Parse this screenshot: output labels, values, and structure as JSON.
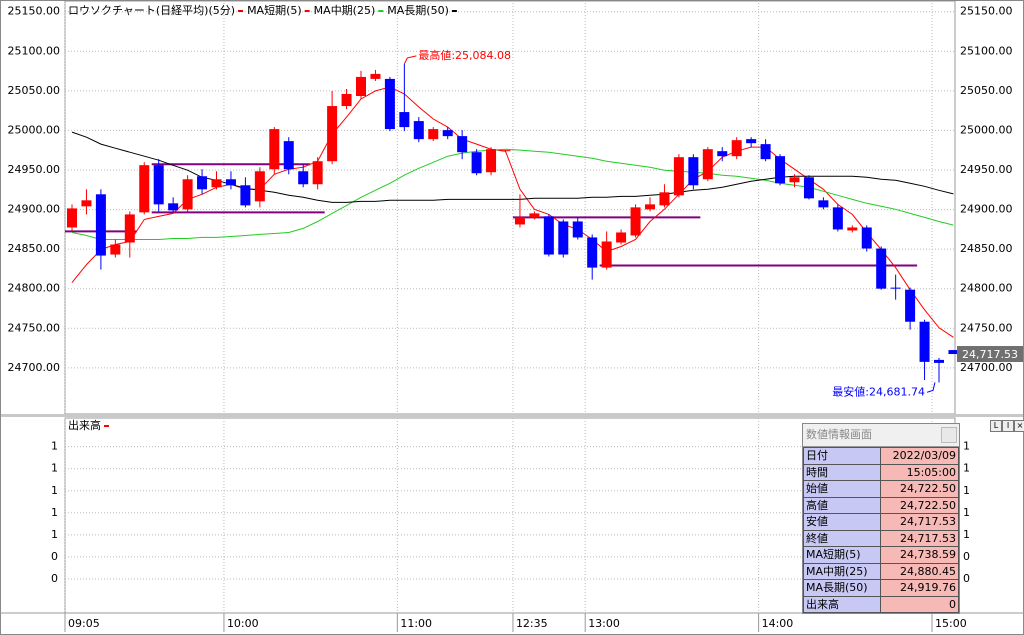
{
  "chart_data": {
    "type": "candlestick",
    "title": "ロウソクチャート(日経平均)(5分)",
    "title_color": "#e00000",
    "categories": [
      "09:05",
      null,
      null,
      null,
      null,
      null,
      null,
      null,
      null,
      null,
      null,
      "10:00",
      null,
      null,
      null,
      null,
      null,
      null,
      null,
      null,
      null,
      null,
      null,
      "11:00",
      null,
      null,
      null,
      null,
      null,
      null,
      null,
      "12:35",
      null,
      null,
      null,
      null,
      "13:00",
      null,
      null,
      null,
      null,
      null,
      null,
      null,
      null,
      null,
      null,
      null,
      "14:00",
      null,
      null,
      null,
      null,
      null,
      null,
      null,
      null,
      null,
      null,
      null,
      "15:00",
      null
    ],
    "ohlc": [
      [
        24877.4,
        24906.6,
        24872.4,
        24901.5
      ],
      [
        24904.1,
        24925.6,
        24893.9,
        24911.7
      ],
      [
        24919.3,
        24925.6,
        24824.2,
        24841.9
      ],
      [
        24843.2,
        24862.2,
        24839.4,
        24855.9
      ],
      [
        24858.4,
        24897.7,
        24839.4,
        24893.9
      ],
      [
        24896.5,
        24959.9,
        24893.9,
        24956.1
      ],
      [
        24956.1,
        24963.7,
        24897.7,
        24906.6
      ],
      [
        24907.9,
        24915.5,
        24896.5,
        24899.0
      ],
      [
        24900.3,
        24943.4,
        24896.5,
        24938.3
      ],
      [
        24942.1,
        24951.0,
        24919.3,
        24925.6
      ],
      [
        24928.2,
        24948.4,
        24925.6,
        24938.3
      ],
      [
        24938.3,
        24948.4,
        24925.6,
        24930.7
      ],
      [
        24930.7,
        24940.8,
        24902.8,
        24905.3
      ],
      [
        24910.4,
        24953.5,
        24902.8,
        24948.4
      ],
      [
        24951.0,
        25004.2,
        24944.6,
        25001.7
      ],
      [
        24986.5,
        24991.5,
        24944.6,
        24951.0
      ],
      [
        24948.4,
        24957.3,
        24928.2,
        24932.0
      ],
      [
        24932.0,
        24966.2,
        24925.6,
        24961.1
      ],
      [
        24961.1,
        25049.9,
        24957.3,
        25030.8
      ],
      [
        25030.8,
        25052.4,
        25027.0,
        25046.1
      ],
      [
        25043.5,
        25075.2,
        25039.7,
        25067.6
      ],
      [
        25065.1,
        25076.5,
        25062.5,
        25071.4
      ],
      [
        25065.1,
        25067.6,
        24999.2,
        25001.7
      ],
      [
        25023.2,
        25084.08,
        24999.2,
        25004.2
      ],
      [
        25011.8,
        25016.9,
        24985.2,
        24989.0
      ],
      [
        24989.0,
        25004.2,
        24986.5,
        25001.7
      ],
      [
        25000.4,
        25004.2,
        24989.0,
        24992.8
      ],
      [
        24992.8,
        25000.4,
        24963.7,
        24972.5
      ],
      [
        24972.5,
        24976.3,
        24943.4,
        24945.9
      ],
      [
        24947.2,
        24978.9,
        24943.4,
        24976.3
      ],
      [
        24973.8,
        24975.1,
        24972.5,
        24975.1
      ],
      [
        24881.2,
        24919.3,
        24877.4,
        24890.1
      ],
      [
        24890.1,
        24897.7,
        24887.6,
        24895.2
      ],
      [
        24891.4,
        24893.9,
        24840.7,
        24843.2
      ],
      [
        24885.0,
        24887.6,
        24839.4,
        24843.2
      ],
      [
        24885.0,
        24890.1,
        24862.2,
        24864.8
      ],
      [
        24864.8,
        24868.6,
        24811.5,
        24826.7
      ],
      [
        24826.7,
        24872.4,
        24824.2,
        24859.7
      ],
      [
        24858.4,
        24874.9,
        24855.9,
        24871.1
      ],
      [
        24867.3,
        24906.6,
        24864.8,
        24902.8
      ],
      [
        24900.3,
        24915.5,
        24897.7,
        24906.6
      ],
      [
        24905.3,
        24932.0,
        24902.8,
        24921.8
      ],
      [
        24918.0,
        24970.0,
        24915.5,
        24966.2
      ],
      [
        24966.2,
        24970.0,
        24925.6,
        24930.7
      ],
      [
        24938.3,
        24978.9,
        24935.8,
        24976.3
      ],
      [
        24973.8,
        24978.9,
        24961.1,
        24967.5
      ],
      [
        24967.5,
        24991.5,
        24963.7,
        24987.7
      ],
      [
        24989.0,
        24991.5,
        24978.9,
        24983.9
      ],
      [
        24982.7,
        24989.0,
        24961.1,
        24963.7
      ],
      [
        24967.5,
        24970.0,
        24930.7,
        24933.2
      ],
      [
        24934.5,
        24944.6,
        24928.2,
        24940.8
      ],
      [
        24940.8,
        24943.4,
        24912.9,
        24914.2
      ],
      [
        24911.7,
        24915.5,
        24900.3,
        24902.8
      ],
      [
        24902.8,
        24906.6,
        24872.4,
        24874.9
      ],
      [
        24873.6,
        24880.0,
        24871.1,
        24877.4
      ],
      [
        24877.4,
        24880.0,
        24847.0,
        24850.8
      ],
      [
        24850.8,
        24853.4,
        24798.8,
        24800.1
      ],
      [
        24801.4,
        24817.9,
        24786.2,
        24800.1
      ],
      [
        24798.8,
        24801.4,
        24748.2,
        24758.3
      ],
      [
        24758.3,
        24760.8,
        24684.7,
        24707.6
      ],
      [
        24710.1,
        24712.7,
        24681.74,
        24706.3
      ],
      [
        24722.5,
        24722.5,
        24717.53,
        24717.53
      ]
    ],
    "up_color": "#ff0000",
    "down_color": "#0000ff",
    "series": [
      {
        "name": "MA短期(5)",
        "color": "#ff0000",
        "values": [
          24807.7,
          24830.5,
          24849.5,
          24855.9,
          24859.7,
          24887.6,
          24891.4,
          24895.2,
          24912.9,
          24919.3,
          24928.2,
          24932.0,
          24925.6,
          24925.6,
          24944.6,
          24951.0,
          24953.5,
          24961.1,
          24995.3,
          25016.9,
          25039.7,
          25049.9,
          25054.9,
          25046.1,
          25029.6,
          25014.4,
          25004.2,
          24989.0,
          24982.7,
          24976.3,
          24973.8,
          24925.6,
          24900.3,
          24893.9,
          24881.2,
          24874.9,
          24862.2,
          24847.0,
          24853.4,
          24862.2,
          24885.0,
          24900.3,
          24919.3,
          24938.3,
          24948.4,
          24966.2,
          24973.8,
          24978.9,
          24978.9,
          24963.7,
          24951.0,
          24938.3,
          24925.6,
          24906.6,
          24893.9,
          24871.1,
          24849.5,
          24826.7,
          24798.8,
          24773.5,
          24750.7,
          24738.59
        ]
      },
      {
        "name": "MA中期(25)",
        "color": "#22cc22",
        "values": [
          24871.1,
          24867.3,
          24862.2,
          24862.2,
          24862.2,
          24862.2,
          24862.2,
          24863.5,
          24863.5,
          24864.8,
          24864.8,
          24866.0,
          24867.3,
          24868.6,
          24869.8,
          24871.1,
          24876.2,
          24885.0,
          24895.2,
          24905.3,
          24915.5,
          24924.4,
          24933.2,
          24943.4,
          24952.2,
          24959.8,
          24967.5,
          24971.3,
          24973.8,
          24975.1,
          24976.3,
          24975.1,
          24973.8,
          24972.5,
          24970.0,
          24967.5,
          24964.9,
          24961.1,
          24958.6,
          24956.0,
          24953.5,
          24949.7,
          24948.4,
          24947.2,
          24945.9,
          24943.4,
          24942.1,
          24939.6,
          24937.0,
          24933.2,
          24930.7,
          24928.2,
          24923.1,
          24918.0,
          24912.9,
          24907.9,
          24904.1,
          24900.3,
          24895.2,
          24890.1,
          24885.0,
          24880.45
        ]
      },
      {
        "name": "MA長期(50)",
        "color": "#000000",
        "values": [
          24997.9,
          24991.5,
          24982.7,
          24977.6,
          24972.5,
          24967.5,
          24962.4,
          24956.0,
          24949.7,
          24940.8,
          24937.0,
          24932.0,
          24926.9,
          24924.4,
          24921.8,
          24918.0,
          24915.5,
          24911.7,
          24909.1,
          24909.1,
          24910.4,
          24910.4,
          24911.7,
          24911.7,
          24911.7,
          24911.7,
          24912.9,
          24912.9,
          24912.9,
          24912.9,
          24912.9,
          24912.9,
          24914.2,
          24914.2,
          24914.2,
          24914.2,
          24915.5,
          24915.5,
          24916.7,
          24916.7,
          24918.0,
          24919.3,
          24921.8,
          24924.4,
          24925.6,
          24928.2,
          24932.0,
          24935.8,
          24938.3,
          24940.8,
          24942.1,
          24942.1,
          24942.1,
          24942.1,
          24942.1,
          24940.8,
          24938.3,
          24937.0,
          24933.2,
          24929.4,
          24924.4,
          24919.76
        ]
      }
    ],
    "ylim": [
      24643,
      25161
    ],
    "yticks": [
      {
        "value": 25150,
        "label": "25150.00"
      },
      {
        "value": 25100,
        "label": "25100.00"
      },
      {
        "value": 25050,
        "label": "25050.00"
      },
      {
        "value": 25000,
        "label": "25000.00"
      },
      {
        "value": 24950,
        "label": "24950.00"
      },
      {
        "value": 24900,
        "label": "24900.00"
      },
      {
        "value": 24850,
        "label": "24850.00"
      },
      {
        "value": 24800,
        "label": "24800.00"
      },
      {
        "value": 24750,
        "label": "24750.00"
      },
      {
        "value": 24700,
        "label": "24700.00"
      }
    ],
    "grid": true,
    "levels": [
      {
        "value": 24957.3,
        "from": 6,
        "to": 16,
        "color": "#800080"
      },
      {
        "value": 24896.5,
        "from": 6,
        "to": 17,
        "color": "#800080"
      },
      {
        "value": 24872.4,
        "from": 0,
        "to": 4,
        "color": "#800080"
      },
      {
        "value": 24890.1,
        "from": 31,
        "to": 43,
        "color": "#800080"
      },
      {
        "value": 24829.3,
        "from": 37,
        "to": 58,
        "color": "#800080"
      }
    ],
    "annotations": [
      {
        "text": "最高値:25,084.08",
        "value": 25084.08,
        "index": 23,
        "color": "#ff0000"
      },
      {
        "text": "最安値:24,681.74",
        "value": 24681.74,
        "index": 60,
        "color": "#0000ff"
      }
    ],
    "last_price": {
      "value": 24717.53,
      "label": "24,717.53"
    }
  },
  "volume_panel": {
    "title": "出来高",
    "title_color": "#ff0000",
    "ylim": [
      0,
      1.66
    ],
    "yticks": [
      {
        "value": 1.4,
        "label": "1"
      },
      {
        "value": 1.2,
        "label": "1"
      },
      {
        "value": 1.0,
        "label": "1"
      },
      {
        "value": 0.8,
        "label": "1"
      },
      {
        "value": 0.6,
        "label": "1"
      },
      {
        "value": 0.4,
        "label": "0"
      },
      {
        "value": 0.2,
        "label": "0"
      }
    ]
  },
  "info_panel": {
    "title": "数値情報画面",
    "rows": [
      [
        "日付",
        "2022/03/09"
      ],
      [
        "時間",
        "15:05:00"
      ],
      [
        "始値",
        "24,722.50"
      ],
      [
        "高値",
        "24,722.50"
      ],
      [
        "安値",
        "24,717.53"
      ],
      [
        "終値",
        "24,717.53"
      ],
      [
        "MA短期(5)",
        "24,738.59"
      ],
      [
        "MA中期(25)",
        "24,880.45"
      ],
      [
        "MA長期(50)",
        "24,919.76"
      ],
      [
        "出来高",
        "0"
      ]
    ]
  }
}
